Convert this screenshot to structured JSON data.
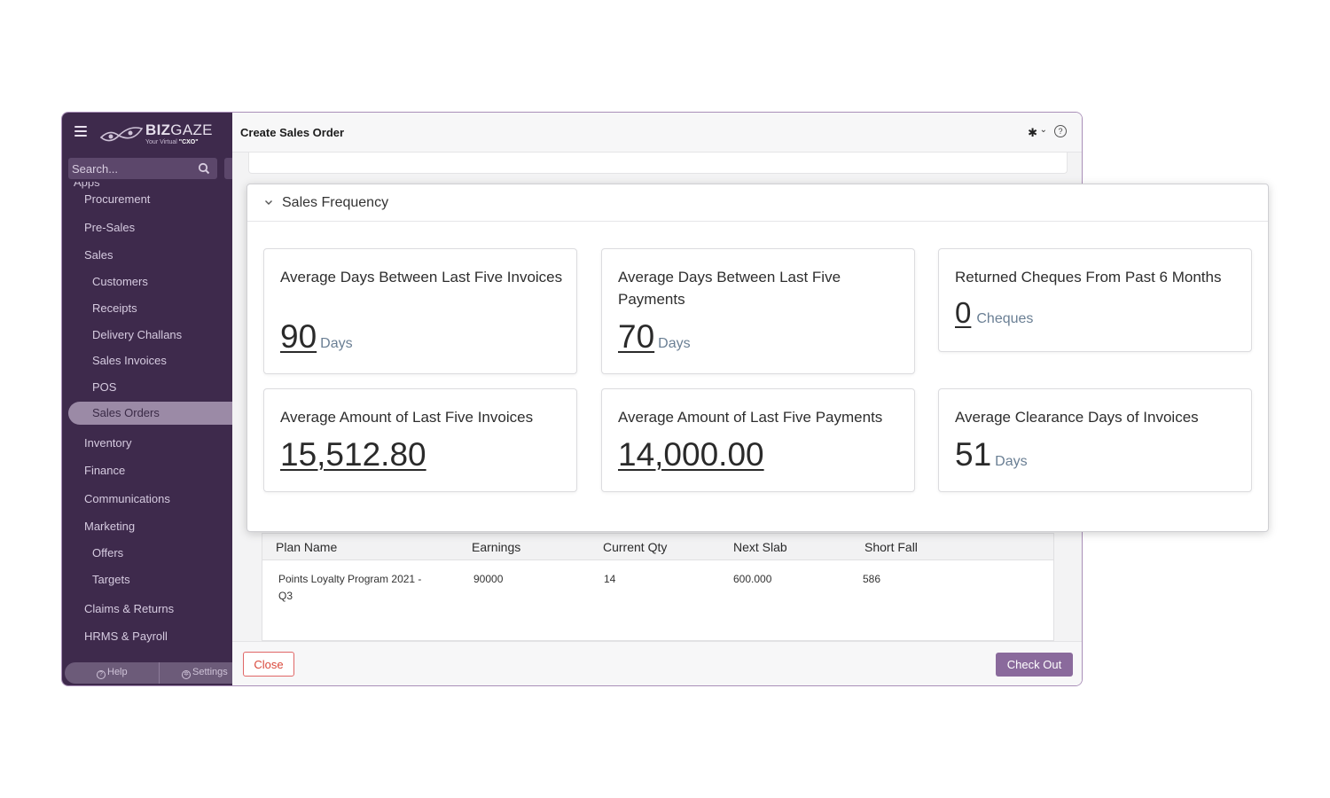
{
  "app": {
    "brand_bold": "BIZ",
    "brand_light": "GAZE",
    "tagline_prefix": "Your Virtual ",
    "tagline_emphasis": "\"CXO\"",
    "page_title": "Create Sales Order"
  },
  "search": {
    "placeholder": "Search..."
  },
  "sidebar": {
    "section_label": "Apps",
    "items": [
      {
        "label": "Procurement",
        "level": 1
      },
      {
        "label": "Pre-Sales",
        "level": 1
      },
      {
        "label": "Sales",
        "level": 1
      },
      {
        "label": "Customers",
        "level": 2
      },
      {
        "label": "Receipts",
        "level": 2
      },
      {
        "label": "Delivery Challans",
        "level": 2
      },
      {
        "label": "Sales Invoices",
        "level": 2
      },
      {
        "label": "POS",
        "level": 2
      },
      {
        "label": "Sales Orders",
        "level": 2,
        "active": true
      },
      {
        "label": "Inventory",
        "level": 1
      },
      {
        "label": "Finance",
        "level": 1
      },
      {
        "label": "Communications",
        "level": 1
      },
      {
        "label": "Marketing",
        "level": 1
      },
      {
        "label": "Offers",
        "level": 2
      },
      {
        "label": "Targets",
        "level": 2
      },
      {
        "label": "Claims & Returns",
        "level": 1
      },
      {
        "label": "HRMS & Payroll",
        "level": 1
      }
    ],
    "footer": {
      "help": "Help",
      "settings": "Settings"
    }
  },
  "panel": {
    "title": "Sales Frequency",
    "cards": [
      {
        "label": "Average Days Between Last Five Invoices",
        "value": "90",
        "unit": "Days"
      },
      {
        "label": "Average Days Between Last Five Payments",
        "value": "70",
        "unit": "Days"
      },
      {
        "label": "Returned Cheques From Past 6 Months",
        "value": "0",
        "unit": "Cheques"
      },
      {
        "label": "Average Amount of Last Five Invoices",
        "value": "15,512.80",
        "unit": ""
      },
      {
        "label": "Average Amount of Last Five Payments",
        "value": "14,000.00",
        "unit": ""
      },
      {
        "label": "Average Clearance Days of Invoices",
        "value": "51",
        "unit": "Days"
      }
    ]
  },
  "plan_table": {
    "headers": [
      "Plan Name",
      "Earnings",
      "Current Qty",
      "Next Slab",
      "Short Fall"
    ],
    "rows": [
      {
        "plan_name_line1": "Points Loyalty Program 2021 -",
        "plan_name_line2": "Q3",
        "earnings": "90000",
        "current_qty": "14",
        "next_slab": "600.000",
        "short_fall": "586"
      }
    ]
  },
  "actions": {
    "close_label": "Close",
    "checkout_label": "Check Out"
  },
  "colors": {
    "sidebar_bg": "#3e2a4c",
    "accent": "#8a6a9c",
    "danger": "#d9483b",
    "unit_text": "#6a7f94"
  }
}
